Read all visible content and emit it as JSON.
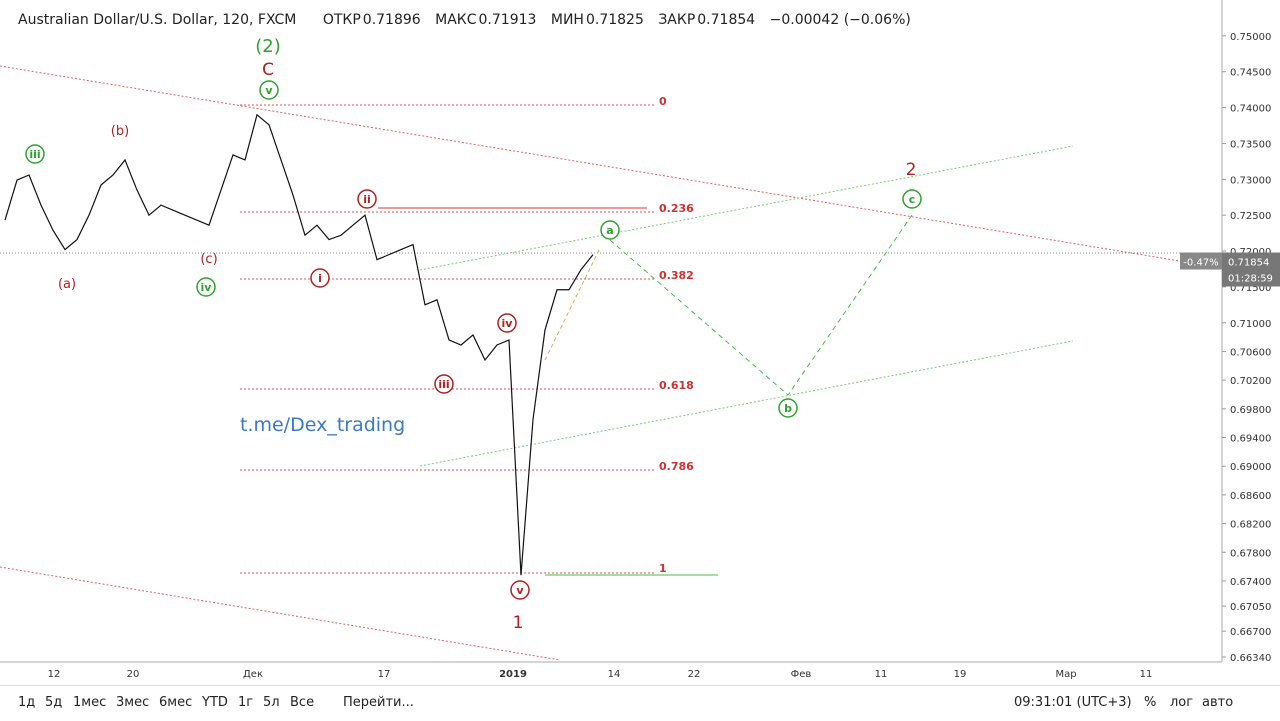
{
  "header": {
    "symbol": "Australian Dollar/U.S. Dollar, 120, FXCM",
    "open_label": "ОТКР",
    "open": "0.71896",
    "high_label": "МАКС",
    "high": "0.71913",
    "low_label": "МИН",
    "low": "0.71825",
    "close_label": "ЗАКР",
    "close": "0.71854",
    "change": "−0.00042 (−0.06%)"
  },
  "price_badge": {
    "change": "-0.47%",
    "price": "0.71854",
    "countdown": "01:28:59"
  },
  "watermark": "t.me/Dex_trading",
  "time_axis": [
    "12",
    "20",
    "Дек",
    "17",
    "2019",
    "14",
    "22",
    "Фев",
    "11",
    "19",
    "Мар",
    "11"
  ],
  "fib_levels": [
    "0",
    "0.236",
    "0.382",
    "0.618",
    "0.786",
    "1"
  ],
  "wave_labels": [
    "(2)",
    "C",
    "v",
    "iii",
    "(b)",
    "(a)",
    "(c)",
    "iv",
    "ii",
    "i",
    "iv",
    "iii",
    "v",
    "1",
    "a",
    "b",
    "c",
    "2"
  ],
  "toolbar": {
    "ranges": [
      "1д",
      "5д",
      "1мес",
      "3мес",
      "6мес",
      "YTD",
      "1г",
      "5л",
      "Все"
    ],
    "goto": "Перейти...",
    "clock": "09:31:01 (UTC+3)",
    "percent": "%",
    "log": "лог",
    "auto": "авто"
  },
  "chart_data": {
    "type": "line",
    "ylim": [
      0.6634,
      0.755
    ],
    "yticks": [
      {
        "value": 0.75,
        "label": "0.75000"
      },
      {
        "value": 0.745,
        "label": "0.74500"
      },
      {
        "value": 0.74,
        "label": "0.74000"
      },
      {
        "value": 0.735,
        "label": "0.73500"
      },
      {
        "value": 0.73,
        "label": "0.73000"
      },
      {
        "value": 0.725,
        "label": "0.72500"
      },
      {
        "value": 0.72,
        "label": "0.72000"
      },
      {
        "value": 0.715,
        "label": "0.71500"
      },
      {
        "value": 0.71,
        "label": "0.71000"
      },
      {
        "value": 0.706,
        "label": "0.70600"
      },
      {
        "value": 0.702,
        "label": "0.70200"
      },
      {
        "value": 0.698,
        "label": "0.69800"
      },
      {
        "value": 0.694,
        "label": "0.69400"
      },
      {
        "value": 0.69,
        "label": "0.69000"
      },
      {
        "value": 0.686,
        "label": "0.68600"
      },
      {
        "value": 0.682,
        "label": "0.68200"
      },
      {
        "value": 0.678,
        "label": "0.67800"
      },
      {
        "value": 0.674,
        "label": "0.67400"
      },
      {
        "value": 0.6705,
        "label": "0.67050"
      },
      {
        "value": 0.667,
        "label": "0.66700"
      },
      {
        "value": 0.6634,
        "label": "0.66340"
      }
    ],
    "series": [
      {
        "color": "#111111",
        "values": [
          0.7243,
          0.7299,
          0.7306,
          0.7264,
          0.7229,
          0.7202,
          0.7216,
          0.725,
          0.7292,
          0.7306,
          0.7327,
          0.7285,
          0.725,
          0.7264,
          0.7257,
          0.725,
          0.7243,
          0.7236,
          0.7285,
          0.7334,
          0.7327,
          0.739,
          0.7376,
          0.7327,
          0.7278,
          0.7222,
          0.7236,
          0.7216,
          0.7222,
          0.7236,
          0.725,
          0.7188,
          0.7195,
          0.7202,
          0.7209,
          0.7125,
          0.7132,
          0.7076,
          0.7069,
          0.7083,
          0.7048,
          0.7069,
          0.7076,
          0.6748,
          0.6965,
          0.709,
          0.7146,
          0.7146,
          0.7174,
          0.7195
        ]
      }
    ]
  }
}
